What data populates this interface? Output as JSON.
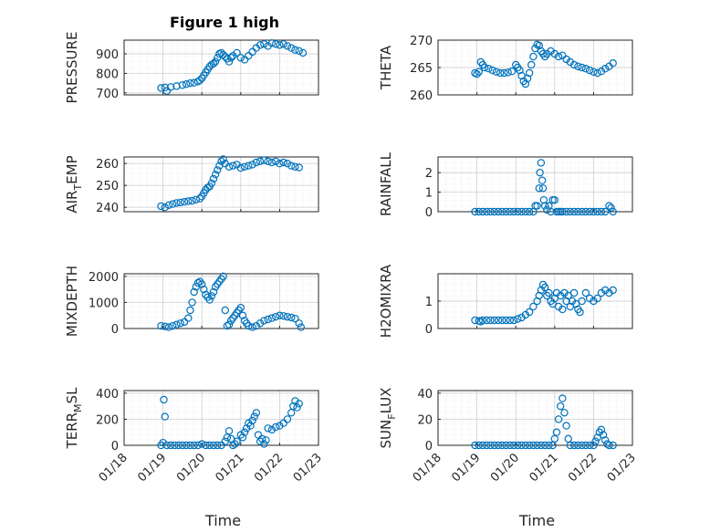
{
  "figure": {
    "title": "Figure 1 high"
  },
  "colors": {
    "marker": "#0072BD",
    "axis": "#262626",
    "grid": "#c8c8c8",
    "minor_grid": "#e0e0e0"
  },
  "chart_data": [
    {
      "type": "scatter",
      "ylabel": "PRESSURE",
      "ylim": [
        690,
        970
      ],
      "yticks": [
        700,
        800,
        900
      ],
      "xlim": [
        1,
        6
      ],
      "xticks": [
        "01/18",
        "01/19",
        "01/20",
        "01/21",
        "01/22",
        "01/23"
      ],
      "xlabel": "",
      "grid": "on",
      "x": [
        1.95,
        2.05,
        2.1,
        2.2,
        2.35,
        2.5,
        2.6,
        2.7,
        2.8,
        2.9,
        2.95,
        3.0,
        3.05,
        3.1,
        3.15,
        3.2,
        3.25,
        3.3,
        3.35,
        3.4,
        3.45,
        3.5,
        3.55,
        3.6,
        3.65,
        3.7,
        3.75,
        3.8,
        3.9,
        4.0,
        4.1,
        4.2,
        4.3,
        4.4,
        4.5,
        4.6,
        4.7,
        4.8,
        4.9,
        5.0,
        5.1,
        5.2,
        5.3,
        5.4,
        5.5,
        5.6
      ],
      "y": [
        725,
        728,
        710,
        730,
        735,
        740,
        745,
        750,
        752,
        758,
        765,
        775,
        790,
        805,
        820,
        835,
        845,
        850,
        860,
        880,
        900,
        905,
        895,
        885,
        875,
        860,
        880,
        890,
        905,
        880,
        870,
        890,
        910,
        930,
        945,
        950,
        940,
        955,
        950,
        945,
        950,
        940,
        930,
        920,
        915,
        905
      ]
    },
    {
      "type": "scatter",
      "ylabel": "THETA",
      "ylim": [
        260,
        270
      ],
      "yticks": [
        260,
        265,
        270
      ],
      "xlim": [
        1,
        6
      ],
      "xticks": [
        "01/18",
        "01/19",
        "01/20",
        "01/21",
        "01/22",
        "01/23"
      ],
      "xlabel": "",
      "grid": "on",
      "x": [
        1.95,
        2.0,
        2.05,
        2.1,
        2.15,
        2.2,
        2.3,
        2.4,
        2.5,
        2.6,
        2.7,
        2.8,
        2.9,
        3.0,
        3.05,
        3.1,
        3.15,
        3.2,
        3.25,
        3.3,
        3.35,
        3.4,
        3.45,
        3.5,
        3.55,
        3.6,
        3.65,
        3.7,
        3.75,
        3.8,
        3.9,
        4.0,
        4.1,
        4.2,
        4.3,
        4.4,
        4.5,
        4.6,
        4.7,
        4.8,
        4.9,
        5.0,
        5.1,
        5.2,
        5.3,
        5.4,
        5.5
      ],
      "y": [
        264,
        263.8,
        264.2,
        266,
        265.5,
        265,
        264.8,
        264.5,
        264.2,
        264,
        264,
        264.1,
        264.3,
        265.5,
        265,
        264.5,
        263.5,
        262.5,
        262,
        263,
        264,
        265.5,
        267,
        268.5,
        269.2,
        269,
        268,
        267.5,
        267,
        267.5,
        268,
        267.5,
        267,
        267.2,
        266.5,
        266,
        265.5,
        265.2,
        265,
        264.8,
        264.5,
        264.2,
        264,
        264.3,
        264.8,
        265.2,
        265.8
      ]
    },
    {
      "type": "scatter",
      "ylabel": "AIR",
      "ylabel_sub": "T",
      "ylabel_tail": "EMP",
      "ylim": [
        238,
        263
      ],
      "yticks": [
        240,
        250,
        260
      ],
      "xlim": [
        1,
        6
      ],
      "xticks": [
        "01/18",
        "01/19",
        "01/20",
        "01/21",
        "01/22",
        "01/23"
      ],
      "xlabel": "",
      "grid": "on",
      "x": [
        1.95,
        2.05,
        2.15,
        2.25,
        2.35,
        2.45,
        2.55,
        2.65,
        2.75,
        2.85,
        2.95,
        3.0,
        3.05,
        3.1,
        3.15,
        3.2,
        3.25,
        3.3,
        3.35,
        3.4,
        3.45,
        3.5,
        3.55,
        3.6,
        3.7,
        3.8,
        3.9,
        4.0,
        4.1,
        4.2,
        4.3,
        4.4,
        4.5,
        4.6,
        4.7,
        4.8,
        4.9,
        5.0,
        5.1,
        5.2,
        5.3,
        5.4,
        5.5
      ],
      "y": [
        240.5,
        240,
        241,
        241.5,
        242,
        242.2,
        242.5,
        242.8,
        243,
        243.5,
        244,
        245,
        246.5,
        248,
        249,
        249.5,
        251,
        253,
        255,
        257,
        259,
        261,
        262,
        260,
        258.5,
        259,
        259.5,
        258,
        258.5,
        259,
        259.5,
        260.5,
        261,
        261.5,
        261,
        260.5,
        261,
        260,
        260.5,
        260,
        259,
        258.5,
        258.2
      ]
    },
    {
      "type": "scatter",
      "ylabel": "RAINFALL",
      "ylim": [
        0,
        2.8
      ],
      "yticks": [
        0,
        1,
        2
      ],
      "xlim": [
        1,
        6
      ],
      "xticks": [
        "01/18",
        "01/19",
        "01/20",
        "01/21",
        "01/22",
        "01/23"
      ],
      "xlabel": "",
      "grid": "on",
      "x": [
        1.95,
        2.05,
        2.15,
        2.25,
        2.35,
        2.45,
        2.55,
        2.65,
        2.75,
        2.85,
        2.95,
        3.05,
        3.15,
        3.25,
        3.35,
        3.45,
        3.5,
        3.55,
        3.6,
        3.62,
        3.65,
        3.68,
        3.7,
        3.72,
        3.75,
        3.8,
        3.85,
        3.9,
        3.95,
        4.0,
        4.05,
        4.1,
        4.15,
        4.2,
        4.3,
        4.4,
        4.5,
        4.6,
        4.7,
        4.8,
        4.9,
        5.0,
        5.1,
        5.2,
        5.3,
        5.4,
        5.45,
        5.5
      ],
      "y": [
        0,
        0,
        0,
        0,
        0,
        0,
        0,
        0,
        0,
        0,
        0,
        0,
        0,
        0,
        0,
        0,
        0.3,
        0.3,
        1.2,
        2.0,
        2.5,
        1.6,
        1.2,
        0.6,
        0.3,
        0.1,
        0.3,
        0,
        0.6,
        0.6,
        0,
        0,
        0,
        0,
        0,
        0,
        0,
        0,
        0,
        0,
        0,
        0,
        0,
        0,
        0,
        0.3,
        0.2,
        0
      ]
    },
    {
      "type": "scatter",
      "ylabel": "MIXDEPTH",
      "ylim": [
        0,
        2100
      ],
      "yticks": [
        0,
        1000,
        2000
      ],
      "xlim": [
        1,
        6
      ],
      "xticks": [
        "01/18",
        "01/19",
        "01/20",
        "01/21",
        "01/22",
        "01/23"
      ],
      "xlabel": "",
      "grid": "on",
      "x": [
        1.95,
        2.05,
        2.15,
        2.25,
        2.35,
        2.45,
        2.55,
        2.65,
        2.7,
        2.75,
        2.8,
        2.85,
        2.9,
        2.95,
        3.0,
        3.05,
        3.1,
        3.15,
        3.2,
        3.25,
        3.3,
        3.35,
        3.4,
        3.45,
        3.5,
        3.55,
        3.6,
        3.65,
        3.7,
        3.75,
        3.8,
        3.85,
        3.9,
        3.95,
        4.0,
        4.05,
        4.1,
        4.15,
        4.2,
        4.3,
        4.4,
        4.5,
        4.6,
        4.7,
        4.8,
        4.9,
        5.0,
        5.1,
        5.2,
        5.3,
        5.4,
        5.5,
        5.55
      ],
      "y": [
        100,
        80,
        50,
        100,
        150,
        200,
        250,
        400,
        700,
        1000,
        1400,
        1600,
        1750,
        1800,
        1700,
        1500,
        1300,
        1200,
        1100,
        1250,
        1400,
        1600,
        1700,
        1800,
        1900,
        2000,
        700,
        100,
        150,
        300,
        400,
        500,
        600,
        700,
        800,
        500,
        300,
        200,
        100,
        50,
        100,
        200,
        300,
        350,
        400,
        450,
        500,
        480,
        450,
        420,
        380,
        200,
        50
      ]
    },
    {
      "type": "scatter",
      "ylabel": "H2OMIXRA",
      "ylim": [
        0,
        2
      ],
      "yticks": [
        0,
        1
      ],
      "xlim": [
        1,
        6
      ],
      "xticks": [
        "01/18",
        "01/19",
        "01/20",
        "01/21",
        "01/22",
        "01/23"
      ],
      "xlabel": "",
      "grid": "on",
      "x": [
        1.95,
        2.05,
        2.1,
        2.15,
        2.25,
        2.35,
        2.45,
        2.55,
        2.65,
        2.75,
        2.85,
        2.95,
        3.05,
        3.15,
        3.25,
        3.35,
        3.45,
        3.55,
        3.6,
        3.65,
        3.7,
        3.75,
        3.8,
        3.85,
        3.9,
        3.95,
        4.0,
        4.05,
        4.1,
        4.15,
        4.2,
        4.25,
        4.3,
        4.35,
        4.4,
        4.45,
        4.5,
        4.55,
        4.6,
        4.65,
        4.7,
        4.8,
        4.9,
        5.0,
        5.1,
        5.2,
        5.3,
        5.4,
        5.5
      ],
      "y": [
        0.3,
        0.28,
        0.25,
        0.3,
        0.3,
        0.3,
        0.3,
        0.3,
        0.3,
        0.3,
        0.3,
        0.3,
        0.35,
        0.4,
        0.5,
        0.6,
        0.8,
        1.0,
        1.2,
        1.4,
        1.6,
        1.5,
        1.2,
        1.3,
        1.0,
        0.9,
        1.1,
        1.3,
        0.8,
        1.2,
        0.7,
        1.3,
        1.0,
        1.2,
        0.8,
        1.0,
        1.3,
        0.9,
        0.7,
        0.6,
        1.0,
        1.3,
        1.1,
        1.0,
        1.1,
        1.3,
        1.4,
        1.3,
        1.4
      ]
    },
    {
      "type": "scatter",
      "ylabel": "TERR",
      "ylabel_sub": "M",
      "ylabel_tail": "SL",
      "ylim": [
        0,
        420
      ],
      "yticks": [
        0,
        200,
        400
      ],
      "xlim": [
        1,
        6
      ],
      "xticks": [
        "01/18",
        "01/19",
        "01/20",
        "01/21",
        "01/22",
        "01/23"
      ],
      "xlabel": "Time",
      "grid": "on",
      "x": [
        1.95,
        2.0,
        2.02,
        2.05,
        2.1,
        2.2,
        2.3,
        2.4,
        2.5,
        2.6,
        2.7,
        2.8,
        2.9,
        3.0,
        3.1,
        3.2,
        3.3,
        3.4,
        3.5,
        3.6,
        3.65,
        3.7,
        3.75,
        3.8,
        3.85,
        3.9,
        4.0,
        4.05,
        4.1,
        4.15,
        4.2,
        4.25,
        4.3,
        4.35,
        4.4,
        4.45,
        4.5,
        4.55,
        4.6,
        4.65,
        4.7,
        4.8,
        4.9,
        5.0,
        5.1,
        5.2,
        5.3,
        5.35,
        5.4,
        5.45,
        5.5
      ],
      "y": [
        0,
        20,
        350,
        220,
        0,
        0,
        0,
        0,
        0,
        0,
        0,
        0,
        0,
        10,
        0,
        0,
        0,
        0,
        0,
        30,
        60,
        110,
        50,
        0,
        10,
        30,
        80,
        60,
        100,
        130,
        170,
        150,
        190,
        220,
        250,
        80,
        30,
        50,
        10,
        40,
        130,
        120,
        140,
        150,
        170,
        200,
        250,
        300,
        340,
        290,
        320
      ]
    },
    {
      "type": "scatter",
      "ylabel": "SUN",
      "ylabel_sub": "F",
      "ylabel_tail": "LUX",
      "ylim": [
        0,
        42
      ],
      "yticks": [
        0,
        20,
        40
      ],
      "xlim": [
        1,
        6
      ],
      "xticks": [
        "01/18",
        "01/19",
        "01/20",
        "01/21",
        "01/22",
        "01/23"
      ],
      "xlabel": "Time",
      "grid": "on",
      "x": [
        1.95,
        2.05,
        2.15,
        2.25,
        2.35,
        2.45,
        2.55,
        2.65,
        2.75,
        2.85,
        2.95,
        3.05,
        3.15,
        3.25,
        3.35,
        3.45,
        3.55,
        3.65,
        3.75,
        3.85,
        3.95,
        4.0,
        4.05,
        4.1,
        4.15,
        4.2,
        4.25,
        4.3,
        4.35,
        4.4,
        4.5,
        4.6,
        4.7,
        4.8,
        4.9,
        5.0,
        5.05,
        5.1,
        5.15,
        5.2,
        5.25,
        5.3,
        5.35,
        5.4,
        5.5
      ],
      "y": [
        0,
        0,
        0,
        0,
        0,
        0,
        0,
        0,
        0,
        0,
        0,
        0,
        0,
        0,
        0,
        0,
        0,
        0,
        0,
        0,
        0,
        5,
        10,
        20,
        30,
        36,
        25,
        15,
        5,
        0,
        0,
        0,
        0,
        0,
        0,
        0,
        3,
        6,
        10,
        12,
        8,
        4,
        1,
        0,
        0
      ]
    }
  ]
}
